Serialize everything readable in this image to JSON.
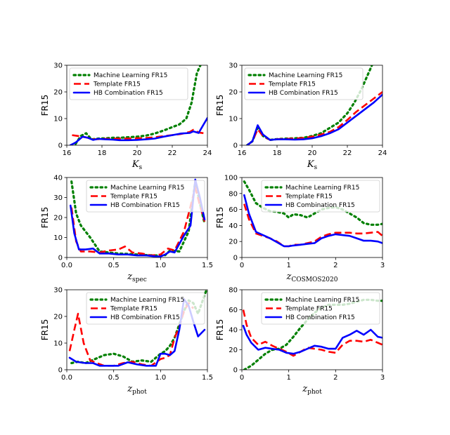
{
  "legend_order": [
    "Machine Learning FR15",
    "Template FR15",
    "HB Combination FR15"
  ],
  "colors": {
    "ml": "#008000",
    "template": "#ff0000",
    "hb": "#0000ff"
  },
  "chart_data": [
    {
      "type": "line",
      "title": "",
      "xlabel": "K",
      "xlabel_sub": "s",
      "ylabel": "FR15",
      "xlim": [
        16,
        24
      ],
      "ylim": [
        0,
        30
      ],
      "xticks": [
        16,
        18,
        20,
        22,
        24
      ],
      "yticks": [
        0,
        10,
        20,
        30
      ],
      "grid": false,
      "legend": "top-left",
      "series": [
        {
          "key": "ml",
          "name": "Machine Learning FR15",
          "style": "dotted",
          "x": [
            16.5,
            16.8,
            17.1,
            17.4,
            17.8,
            18.2,
            18.6,
            19.0,
            19.5,
            20.0,
            20.5,
            21.0,
            21.5,
            22.0,
            22.4,
            22.8,
            23.1,
            23.4,
            23.6
          ],
          "y": [
            0.5,
            3.5,
            4.5,
            2.2,
            2.5,
            2.6,
            2.8,
            2.8,
            3.0,
            3.2,
            3.6,
            4.4,
            5.5,
            6.8,
            7.8,
            10.0,
            16.0,
            27.0,
            30.0
          ]
        },
        {
          "key": "template",
          "name": "Template FR15",
          "style": "dashed",
          "x": [
            16.3,
            16.6,
            16.9,
            17.2,
            17.5,
            17.8,
            18.2,
            18.6,
            19.0,
            19.5,
            20.0,
            20.5,
            21.0,
            21.5,
            22.0,
            22.5,
            23.0,
            23.2,
            23.5,
            23.8
          ],
          "y": [
            3.8,
            3.5,
            3.2,
            2.8,
            2.2,
            2.3,
            2.4,
            2.4,
            2.5,
            2.5,
            2.6,
            2.7,
            3.0,
            3.4,
            3.8,
            4.2,
            5.0,
            5.8,
            4.8,
            4.5
          ]
        },
        {
          "key": "hb",
          "name": "HB Combination FR15",
          "style": "solid",
          "x": [
            16.2,
            16.5,
            16.9,
            17.2,
            17.5,
            17.8,
            18.2,
            18.6,
            19.0,
            19.5,
            20.0,
            20.5,
            21.0,
            21.5,
            22.0,
            22.5,
            23.0,
            23.2,
            23.5,
            23.8,
            24.0
          ],
          "y": [
            0.0,
            1.0,
            3.2,
            2.8,
            2.0,
            2.4,
            2.2,
            2.1,
            1.9,
            1.9,
            2.0,
            2.2,
            2.5,
            3.2,
            3.8,
            4.4,
            4.6,
            5.2,
            4.6,
            8.0,
            10.2
          ]
        }
      ]
    },
    {
      "type": "line",
      "title": "",
      "xlabel": "K",
      "xlabel_sub": "s",
      "ylabel": "FR15",
      "xlim": [
        16,
        24
      ],
      "ylim": [
        0,
        30
      ],
      "xticks": [
        16,
        18,
        20,
        22,
        24
      ],
      "yticks": [
        0,
        10,
        20,
        30
      ],
      "grid": false,
      "legend": "top-left",
      "series": [
        {
          "key": "ml",
          "name": "Machine Learning FR15",
          "style": "dotted",
          "x": [
            16.3,
            16.6,
            16.9,
            17.2,
            17.6,
            18.0,
            18.5,
            19.0,
            19.5,
            20.0,
            20.5,
            21.0,
            21.5,
            22.0,
            22.4,
            22.8,
            23.1,
            23.4
          ],
          "y": [
            0.0,
            1.5,
            6.5,
            3.5,
            2.0,
            2.3,
            2.5,
            2.6,
            2.8,
            3.5,
            4.5,
            6.5,
            8.5,
            12.0,
            16.0,
            21.0,
            25.5,
            30.0
          ]
        },
        {
          "key": "template",
          "name": "Template FR15",
          "style": "dashed",
          "x": [
            16.3,
            16.6,
            16.9,
            17.2,
            17.6,
            18.0,
            18.5,
            19.0,
            19.5,
            20.0,
            20.5,
            21.0,
            21.5,
            22.0,
            22.5,
            23.0,
            23.5,
            24.0
          ],
          "y": [
            0.0,
            1.5,
            6.0,
            3.5,
            2.0,
            2.3,
            2.4,
            2.5,
            2.7,
            3.2,
            4.0,
            5.0,
            6.8,
            9.5,
            12.5,
            15.0,
            17.5,
            20.0
          ]
        },
        {
          "key": "hb",
          "name": "HB Combination FR15",
          "style": "solid",
          "x": [
            16.3,
            16.6,
            16.9,
            17.2,
            17.6,
            18.0,
            18.5,
            19.0,
            19.5,
            20.0,
            20.5,
            21.0,
            21.5,
            22.0,
            22.5,
            23.0,
            23.5,
            24.0
          ],
          "y": [
            0.0,
            1.5,
            7.5,
            4.0,
            2.0,
            2.2,
            2.2,
            2.1,
            2.2,
            2.6,
            3.4,
            4.5,
            6.0,
            8.5,
            11.0,
            13.5,
            16.0,
            19.0
          ]
        }
      ]
    },
    {
      "type": "line",
      "title": "",
      "xlabel": "z",
      "xlabel_sub": "spec",
      "ylabel": "FR15",
      "xlim": [
        0,
        1.5
      ],
      "ylim": [
        0,
        40
      ],
      "xticks": [
        0.0,
        0.5,
        1.0,
        1.5
      ],
      "yticks": [
        0,
        10,
        20,
        30,
        40
      ],
      "grid": false,
      "legend": "top-right",
      "series": [
        {
          "key": "ml",
          "name": "Machine Learning FR15",
          "style": "dotted",
          "x": [
            0.05,
            0.1,
            0.15,
            0.25,
            0.35,
            0.45,
            0.55,
            0.65,
            0.75,
            0.85,
            0.95,
            1.05,
            1.1,
            1.2,
            1.3,
            1.37,
            1.43,
            1.47
          ],
          "y": [
            38.0,
            22.0,
            16.0,
            10.0,
            3.0,
            2.5,
            2.0,
            1.8,
            1.5,
            1.2,
            1.0,
            1.2,
            3.5,
            3.0,
            13.0,
            38.0,
            25.0,
            17.0
          ]
        },
        {
          "key": "template",
          "name": "Template FR15",
          "style": "dashed",
          "x": [
            0.05,
            0.1,
            0.15,
            0.25,
            0.35,
            0.45,
            0.55,
            0.62,
            0.7,
            0.8,
            0.9,
            1.0,
            1.08,
            1.15,
            1.25,
            1.3,
            1.37,
            1.42,
            1.47
          ],
          "y": [
            25.0,
            8.0,
            3.0,
            3.0,
            2.5,
            3.5,
            4.0,
            5.5,
            2.5,
            2.0,
            1.0,
            1.5,
            4.5,
            3.5,
            13.0,
            22.0,
            35.0,
            26.0,
            18.0
          ]
        },
        {
          "key": "hb",
          "name": "HB Combination FR15",
          "style": "solid",
          "x": [
            0.04,
            0.08,
            0.13,
            0.2,
            0.28,
            0.35,
            0.45,
            0.55,
            0.65,
            0.75,
            0.85,
            0.95,
            1.0,
            1.05,
            1.1,
            1.15,
            1.25,
            1.32,
            1.37,
            1.42,
            1.47
          ],
          "y": [
            26.0,
            12.0,
            4.0,
            4.0,
            4.5,
            2.0,
            2.0,
            1.5,
            1.5,
            1.0,
            1.0,
            0.5,
            0.5,
            1.5,
            3.0,
            2.5,
            11.0,
            16.0,
            39.0,
            30.0,
            19.0
          ]
        }
      ]
    },
    {
      "type": "line",
      "title": "",
      "xlabel": "z",
      "xlabel_sub": "COSMOS2020",
      "ylabel": "FR15",
      "xlim": [
        0,
        3
      ],
      "ylim": [
        0,
        100
      ],
      "xticks": [
        0,
        1,
        2,
        3
      ],
      "yticks": [
        0,
        20,
        40,
        60,
        80,
        100
      ],
      "grid": false,
      "legend": "top-right",
      "series": [
        {
          "key": "ml",
          "name": "Machine Learning FR15",
          "style": "dotted",
          "x": [
            0.05,
            0.15,
            0.3,
            0.45,
            0.6,
            0.75,
            0.9,
            1.0,
            1.1,
            1.25,
            1.4,
            1.55,
            1.7,
            1.85,
            2.0,
            2.15,
            2.3,
            2.45,
            2.6,
            2.75,
            2.9,
            3.0
          ],
          "y": [
            95.0,
            85.0,
            68.0,
            62.0,
            58.0,
            57.0,
            55.0,
            50.0,
            54.0,
            53.0,
            50.0,
            55.0,
            60.0,
            62.0,
            63.0,
            60.0,
            55.0,
            50.0,
            43.0,
            41.0,
            41.0,
            42.0
          ]
        },
        {
          "key": "template",
          "name": "Template FR15",
          "style": "dashed",
          "x": [
            0.05,
            0.15,
            0.3,
            0.45,
            0.6,
            0.75,
            0.9,
            1.0,
            1.1,
            1.25,
            1.4,
            1.55,
            1.7,
            1.85,
            2.0,
            2.15,
            2.3,
            2.45,
            2.6,
            2.75,
            2.9,
            3.0
          ],
          "y": [
            67.0,
            48.0,
            30.0,
            27.0,
            24.0,
            20.0,
            14.0,
            14.0,
            16.0,
            16.0,
            18.0,
            20.0,
            26.0,
            29.0,
            31.0,
            31.0,
            31.0,
            30.0,
            30.0,
            31.0,
            32.0,
            27.0
          ]
        },
        {
          "key": "hb",
          "name": "HB Combination FR15",
          "style": "solid",
          "x": [
            0.05,
            0.15,
            0.3,
            0.45,
            0.6,
            0.75,
            0.9,
            1.0,
            1.1,
            1.25,
            1.4,
            1.55,
            1.7,
            1.85,
            2.0,
            2.15,
            2.3,
            2.45,
            2.6,
            2.75,
            2.9,
            3.0
          ],
          "y": [
            78.0,
            55.0,
            32.0,
            28.0,
            24.0,
            19.0,
            14.0,
            14.0,
            15.0,
            16.0,
            17.0,
            18.0,
            24.0,
            27.0,
            29.0,
            28.0,
            27.0,
            24.0,
            21.0,
            21.0,
            20.0,
            18.0
          ]
        }
      ]
    },
    {
      "type": "line",
      "title": "",
      "xlabel": "z",
      "xlabel_sub": "phot",
      "ylabel": "FR15",
      "xlim": [
        0,
        1.5
      ],
      "ylim": [
        0,
        30
      ],
      "xticks": [
        0.0,
        0.5,
        1.0,
        1.5
      ],
      "yticks": [
        0,
        10,
        20,
        30
      ],
      "grid": false,
      "legend": "top-right",
      "series": [
        {
          "key": "ml",
          "name": "Machine Learning FR15",
          "style": "dotted",
          "x": [
            0.05,
            0.12,
            0.2,
            0.3,
            0.4,
            0.5,
            0.6,
            0.7,
            0.8,
            0.9,
            1.0,
            1.05,
            1.1,
            1.15,
            1.2,
            1.25,
            1.3,
            1.35,
            1.4,
            1.45,
            1.5
          ],
          "y": [
            2.5,
            3.0,
            2.5,
            4.0,
            5.5,
            6.0,
            5.0,
            3.0,
            3.5,
            3.0,
            6.0,
            7.0,
            9.0,
            12.0,
            17.0,
            22.0,
            26.0,
            25.0,
            21.0,
            26.0,
            31.0
          ]
        },
        {
          "key": "template",
          "name": "Template FR15",
          "style": "dashed",
          "x": [
            0.03,
            0.08,
            0.12,
            0.18,
            0.25,
            0.32,
            0.4,
            0.5,
            0.6,
            0.7,
            0.8,
            0.9,
            1.0,
            1.05,
            1.1,
            1.15,
            1.2,
            1.25,
            1.3,
            1.35
          ],
          "y": [
            7.0,
            15.0,
            21.0,
            10.0,
            3.5,
            2.5,
            1.5,
            1.5,
            2.5,
            3.0,
            2.0,
            1.5,
            4.0,
            4.5,
            5.5,
            12.0,
            16.0,
            22.0,
            25.0,
            23.0
          ]
        },
        {
          "key": "hb",
          "name": "HB Combination FR15",
          "style": "solid",
          "x": [
            0.03,
            0.1,
            0.2,
            0.28,
            0.35,
            0.45,
            0.55,
            0.65,
            0.75,
            0.85,
            0.95,
            1.0,
            1.05,
            1.1,
            1.15,
            1.2,
            1.25,
            1.3,
            1.35,
            1.4,
            1.47
          ],
          "y": [
            4.5,
            3.0,
            2.5,
            2.5,
            1.5,
            1.5,
            1.5,
            2.8,
            2.0,
            1.5,
            1.5,
            6.0,
            6.0,
            5.5,
            7.0,
            15.0,
            26.5,
            24.0,
            18.0,
            12.5,
            15.0
          ]
        }
      ]
    },
    {
      "type": "line",
      "title": "",
      "xlabel": "z",
      "xlabel_sub": "phot",
      "ylabel": "FR15",
      "xlim": [
        0,
        3
      ],
      "ylim": [
        0,
        80
      ],
      "xticks": [
        0,
        1,
        2,
        3
      ],
      "yticks": [
        0,
        20,
        40,
        60,
        80
      ],
      "grid": false,
      "legend": "top-right",
      "series": [
        {
          "key": "ml",
          "name": "Machine Learning FR15",
          "style": "dotted",
          "x": [
            0.05,
            0.2,
            0.35,
            0.5,
            0.65,
            0.8,
            0.95,
            1.1,
            1.25,
            1.4,
            1.55,
            1.7,
            1.85,
            2.0,
            2.15,
            2.3,
            2.45,
            2.6,
            2.75,
            2.9,
            3.0
          ],
          "y": [
            0.0,
            4.0,
            10.0,
            16.0,
            20.0,
            21.0,
            25.0,
            33.0,
            42.0,
            50.0,
            57.0,
            62.0,
            65.0,
            65.0,
            65.0,
            66.0,
            68.0,
            70.0,
            70.0,
            69.0,
            69.0
          ]
        },
        {
          "key": "template",
          "name": "Template FR15",
          "style": "dashed",
          "x": [
            0.03,
            0.1,
            0.2,
            0.35,
            0.5,
            0.65,
            0.8,
            0.95,
            1.1,
            1.25,
            1.4,
            1.55,
            1.7,
            1.85,
            2.0,
            2.15,
            2.3,
            2.45,
            2.6,
            2.75,
            2.9,
            3.0
          ],
          "y": [
            60.0,
            45.0,
            32.0,
            25.0,
            28.0,
            24.0,
            21.0,
            18.0,
            14.0,
            18.0,
            22.0,
            21.0,
            20.0,
            18.0,
            17.0,
            25.0,
            29.0,
            29.0,
            28.0,
            30.0,
            27.0,
            25.0
          ]
        },
        {
          "key": "hb",
          "name": "HB Combination FR15",
          "style": "solid",
          "x": [
            0.03,
            0.1,
            0.2,
            0.35,
            0.5,
            0.65,
            0.8,
            0.95,
            1.1,
            1.25,
            1.4,
            1.55,
            1.7,
            1.85,
            2.0,
            2.15,
            2.3,
            2.45,
            2.6,
            2.75,
            2.9,
            3.0
          ],
          "y": [
            44.0,
            35.0,
            27.0,
            20.0,
            22.0,
            21.0,
            20.0,
            17.0,
            16.0,
            18.0,
            21.0,
            24.0,
            23.0,
            21.0,
            21.0,
            32.0,
            35.0,
            39.0,
            35.0,
            40.0,
            33.0,
            32.0
          ]
        }
      ]
    }
  ]
}
